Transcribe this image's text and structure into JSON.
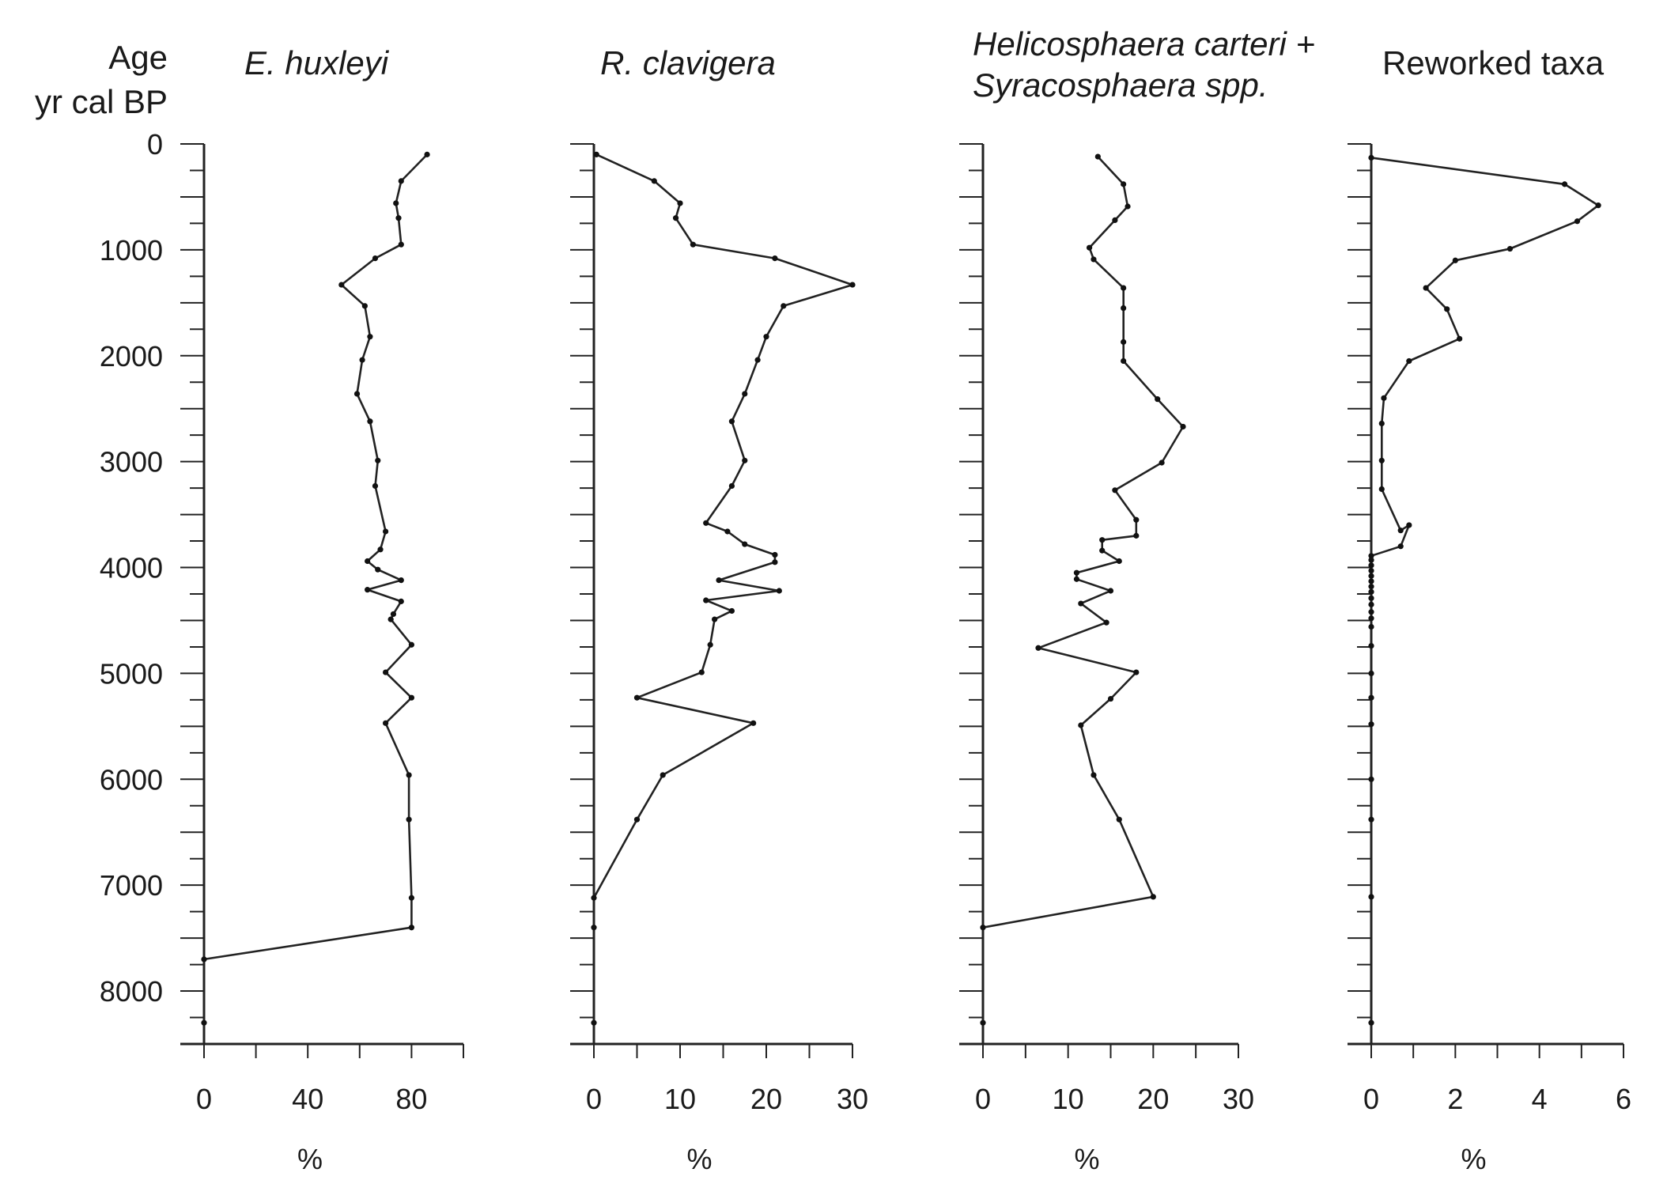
{
  "chart_data": [
    {
      "type": "line",
      "title": "E. huxleyi",
      "xlabel": "%",
      "ylabel": "Age yr cal BP",
      "xlim": [
        0,
        100
      ],
      "ylim": [
        0,
        8500
      ],
      "x_ticks": [
        0,
        40,
        80
      ],
      "y_ticks": [
        0,
        1000,
        2000,
        3000,
        4000,
        5000,
        6000,
        7000,
        8000
      ],
      "series": [
        {
          "x": [
            86,
            76,
            74,
            75,
            76,
            66,
            53,
            62,
            64,
            61,
            59,
            64,
            67,
            66,
            70,
            68,
            63,
            67,
            76,
            63,
            76,
            73,
            72,
            80,
            70,
            80,
            70,
            79,
            79,
            80,
            80,
            0,
            0
          ],
          "y": [
            100,
            350,
            560,
            700,
            950,
            1080,
            1330,
            1530,
            1820,
            2040,
            2360,
            2620,
            2990,
            3230,
            3660,
            3830,
            3940,
            4020,
            4120,
            4210,
            4320,
            4440,
            4490,
            4730,
            4990,
            5230,
            5470,
            5960,
            6380,
            7120,
            7400,
            7700,
            8300
          ]
        }
      ]
    },
    {
      "type": "line",
      "title": "R. clavigera",
      "xlabel": "%",
      "xlim": [
        0,
        30
      ],
      "ylim": [
        0,
        8500
      ],
      "x_ticks": [
        0,
        10,
        20,
        30
      ],
      "series": [
        {
          "x": [
            0.3,
            7,
            10,
            9.5,
            11.5,
            21,
            30,
            22,
            20,
            19,
            17.5,
            16,
            17.5,
            16,
            13,
            15.5,
            17.5,
            21,
            21,
            14.5,
            21.5,
            13,
            16,
            14,
            13.5,
            12.5,
            5,
            18.5,
            8,
            5,
            0,
            0,
            0
          ],
          "y": [
            100,
            350,
            560,
            700,
            950,
            1080,
            1330,
            1530,
            1820,
            2040,
            2360,
            2620,
            2990,
            3230,
            3580,
            3660,
            3780,
            3880,
            3950,
            4120,
            4220,
            4310,
            4410,
            4490,
            4730,
            4990,
            5230,
            5470,
            5960,
            6380,
            7120,
            7400,
            8300
          ]
        }
      ]
    },
    {
      "type": "line",
      "title": [
        "Helicosphaera carteri +",
        "Syracosphaera spp."
      ],
      "xlabel": "%",
      "xlim": [
        0,
        30
      ],
      "ylim": [
        0,
        8500
      ],
      "x_ticks": [
        0,
        10,
        20,
        30
      ],
      "series": [
        {
          "x": [
            13.5,
            16.5,
            17,
            15.5,
            12.5,
            13,
            16.5,
            16.5,
            16.5,
            16.5,
            20.5,
            23.5,
            21,
            15.5,
            18,
            18,
            14,
            14,
            16,
            11,
            11,
            15,
            11.5,
            14.5,
            6.5,
            18,
            15,
            11.5,
            13,
            16,
            20,
            0,
            0
          ],
          "y": [
            120,
            380,
            590,
            720,
            980,
            1090,
            1360,
            1550,
            1870,
            2050,
            2410,
            2670,
            3010,
            3270,
            3550,
            3700,
            3740,
            3840,
            3940,
            4050,
            4110,
            4220,
            4340,
            4520,
            4760,
            4990,
            5240,
            5490,
            5960,
            6380,
            7110,
            7400,
            8300
          ]
        }
      ]
    },
    {
      "type": "line",
      "title": "Reworked taxa",
      "xlabel": "%",
      "xlim": [
        0,
        6
      ],
      "ylim": [
        0,
        8500
      ],
      "x_ticks": [
        0,
        2,
        4,
        6
      ],
      "series": [
        {
          "x": [
            0,
            4.6,
            5.4,
            4.9,
            3.3,
            2.0,
            1.3,
            1.8,
            2.1,
            0.9,
            0.3,
            0.25,
            0.25,
            0.25,
            0.7,
            0.9,
            0.7,
            0,
            0,
            0,
            0,
            0,
            0,
            0,
            0,
            0,
            0,
            0,
            0,
            0,
            0,
            0,
            0,
            0,
            0,
            0,
            0,
            0
          ],
          "y": [
            130,
            380,
            580,
            730,
            990,
            1100,
            1360,
            1560,
            1840,
            2050,
            2400,
            2640,
            2990,
            3260,
            3650,
            3600,
            3800,
            3890,
            3930,
            3980,
            4030,
            4080,
            4130,
            4180,
            4230,
            4290,
            4350,
            4420,
            4480,
            4560,
            4740,
            5000,
            5230,
            5480,
            6000,
            6380,
            7110,
            8300
          ]
        }
      ]
    }
  ],
  "y_axis": {
    "label_line1": "Age",
    "label_line2": "yr cal BP",
    "ticks": [
      "0",
      "1000",
      "2000",
      "3000",
      "4000",
      "5000",
      "6000",
      "7000",
      "8000"
    ]
  }
}
